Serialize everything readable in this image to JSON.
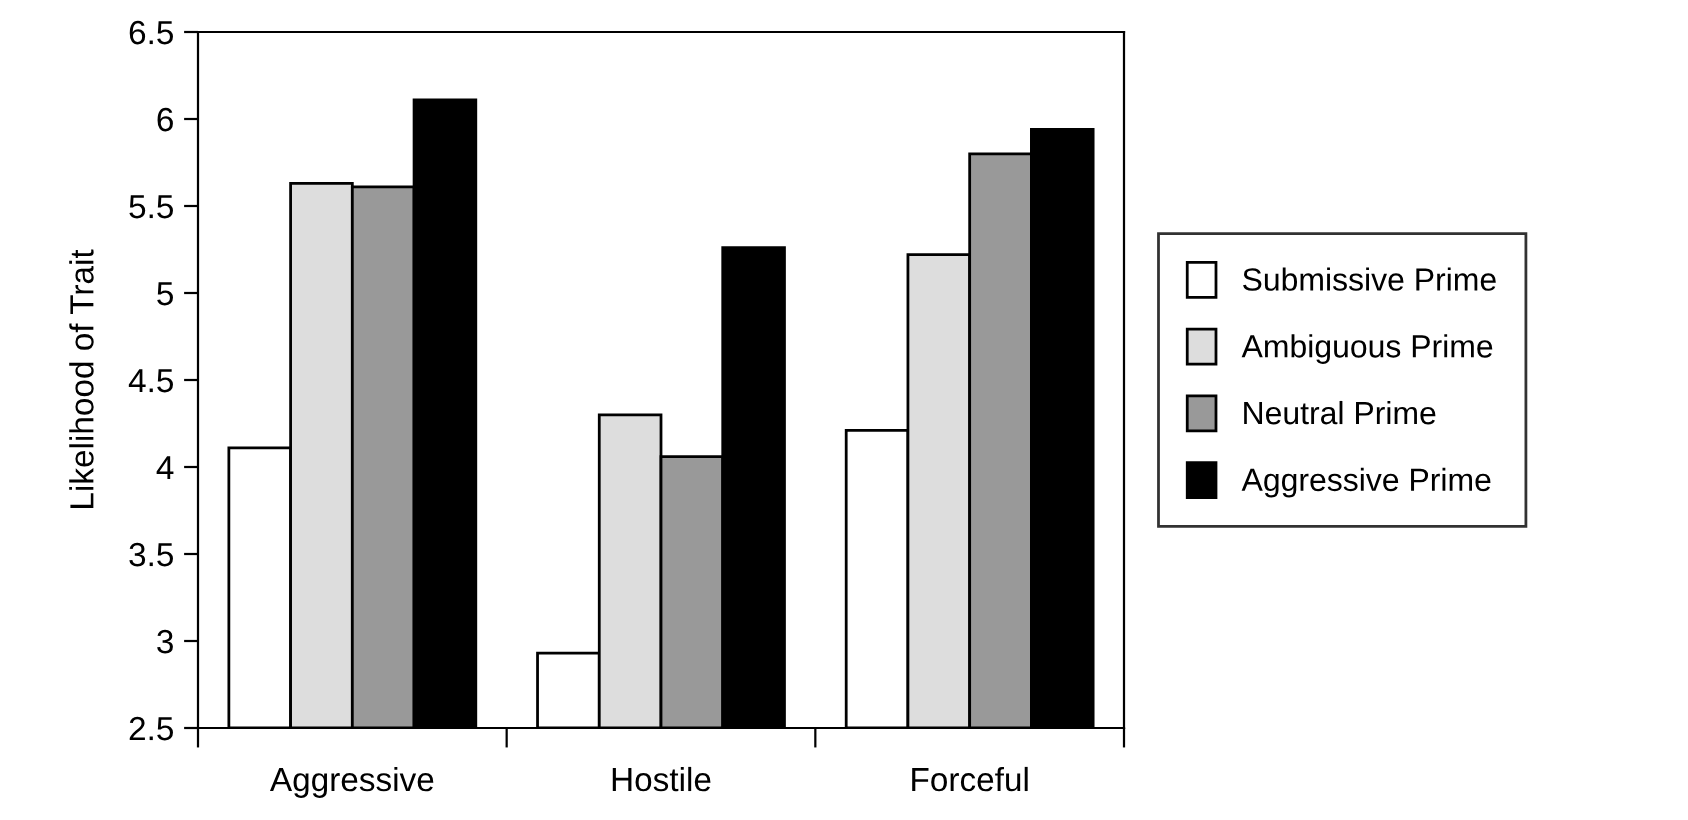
{
  "chart_data": {
    "type": "bar",
    "ylabel": "Likelihood of Trait",
    "categories": [
      "Aggressive",
      "Hostile",
      "Forceful"
    ],
    "series": [
      {
        "name": "Submissive Prime",
        "color": "#ffffff",
        "values": [
          4.11,
          2.93,
          4.21
        ]
      },
      {
        "name": "Ambiguous Prime",
        "color": "#dddddd",
        "values": [
          5.63,
          4.3,
          5.22
        ]
      },
      {
        "name": "Neutral Prime",
        "color": "#999999",
        "values": [
          5.61,
          4.06,
          5.8
        ]
      },
      {
        "name": "Aggressive Prime",
        "color": "#000000",
        "values": [
          6.11,
          5.26,
          5.94
        ]
      }
    ],
    "ylim": [
      2.5,
      6.5
    ],
    "yticks": [
      2.5,
      3,
      3.5,
      4,
      4.5,
      5,
      5.5,
      6,
      6.5
    ],
    "grid": false,
    "legend": "right"
  }
}
